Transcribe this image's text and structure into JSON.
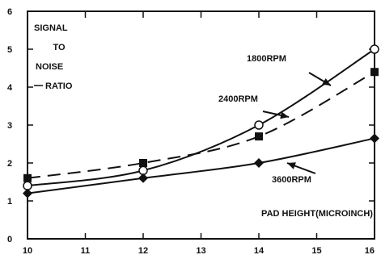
{
  "chart_data": {
    "type": "line",
    "ylabel_lines": [
      "SIGNAL",
      "TO",
      "NOISE",
      "RATIO"
    ],
    "xlabel": "PAD HEIGHT(MICROINCH)",
    "xlim": [
      10,
      16
    ],
    "ylim": [
      0,
      6
    ],
    "xticks": [
      "10",
      "11",
      "12",
      "13",
      "14",
      "15",
      "16"
    ],
    "yticks": [
      "0",
      "1",
      "2",
      "3",
      "4",
      "5",
      "6"
    ],
    "grid": false,
    "series": [
      {
        "name": "1800RPM",
        "style": "solid",
        "marker": "circle",
        "x": [
          10,
          12,
          14,
          16
        ],
        "y": [
          1.4,
          1.8,
          3.0,
          5.0
        ]
      },
      {
        "name": "2400RPM",
        "style": "dashed",
        "marker": "square",
        "x": [
          10,
          12,
          14,
          16
        ],
        "y": [
          1.6,
          2.0,
          2.7,
          4.4
        ]
      },
      {
        "name": "3600RPM",
        "style": "solid",
        "marker": "diamond",
        "x": [
          10,
          12,
          14,
          16
        ],
        "y": [
          1.2,
          1.6,
          2.0,
          2.65
        ]
      }
    ]
  }
}
